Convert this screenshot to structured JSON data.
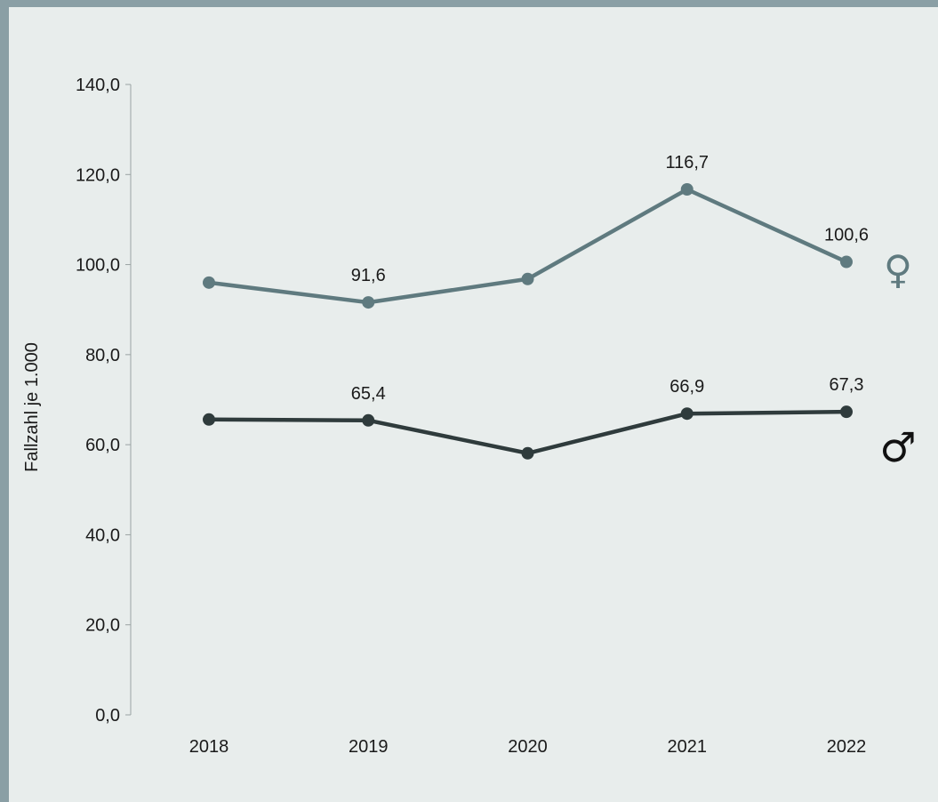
{
  "chart_data": {
    "type": "line",
    "xlabel": "",
    "ylabel": "Fallzahl je 1.000",
    "ylim": [
      0,
      140
    ],
    "yticks": [
      "0,0",
      "20,0",
      "40,0",
      "60,0",
      "80,0",
      "100,0",
      "120,0",
      "140,0"
    ],
    "categories": [
      "2018",
      "2019",
      "2020",
      "2021",
      "2022"
    ],
    "grid": false,
    "legend": "symbols at right end of lines",
    "series": [
      {
        "symbol": "♀",
        "color": "#5f7a7f",
        "values": [
          96.0,
          91.6,
          96.8,
          116.7,
          100.6
        ],
        "labels": [
          "",
          "91,6",
          "",
          "116,7",
          "100,6"
        ]
      },
      {
        "symbol": "♂",
        "color": "#2f3b3c",
        "values": [
          65.6,
          65.4,
          58.1,
          66.9,
          67.3
        ],
        "labels": [
          "",
          "65,4",
          "",
          "66,9",
          "67,3"
        ]
      }
    ]
  }
}
